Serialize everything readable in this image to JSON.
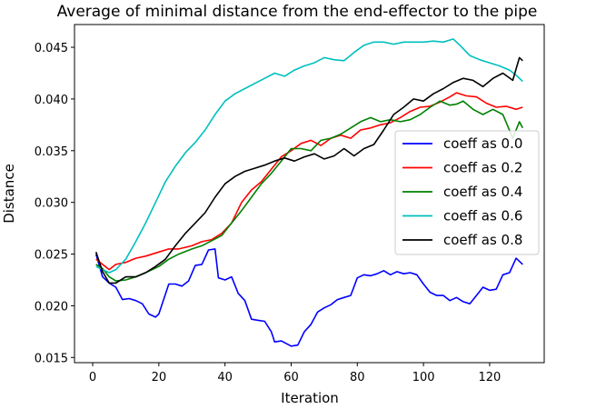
{
  "chart_data": {
    "type": "line",
    "title": "Average of minimal distance from the end-effector to the pipe",
    "xlabel": "Iteration",
    "ylabel": "Distance",
    "xlim": [
      -5.5,
      136.5
    ],
    "ylim": [
      0.0145,
      0.0472
    ],
    "xticks": [
      0,
      20,
      40,
      60,
      80,
      100,
      120
    ],
    "xtick_labels": [
      "0",
      "20",
      "40",
      "60",
      "80",
      "100",
      "120"
    ],
    "yticks": [
      0.015,
      0.02,
      0.025,
      0.03,
      0.035,
      0.04,
      0.045
    ],
    "ytick_labels": [
      "0.015",
      "0.020",
      "0.025",
      "0.030",
      "0.035",
      "0.040",
      "0.045"
    ],
    "grid": false,
    "legend_position": "center-right",
    "series": [
      {
        "name": "coeff as 0.0",
        "color": "#0000ff",
        "x": [
          1,
          3,
          5,
          7,
          9,
          11,
          13,
          15,
          17,
          19,
          20,
          23,
          25,
          27,
          29,
          31,
          33,
          35,
          37,
          38,
          40,
          42,
          44,
          46,
          48,
          50,
          52,
          54,
          55,
          57,
          60,
          62,
          64,
          66,
          68,
          70,
          72,
          74,
          76,
          78,
          80,
          82,
          84,
          86,
          88,
          90,
          92,
          94,
          96,
          98,
          100,
          102,
          104,
          106,
          108,
          110,
          112,
          114,
          116,
          118,
          120,
          122,
          124,
          126,
          128,
          130
        ],
        "y": [
          0.025,
          0.0228,
          0.0222,
          0.0218,
          0.0206,
          0.0207,
          0.0205,
          0.0202,
          0.0192,
          0.0189,
          0.0192,
          0.0221,
          0.0221,
          0.0219,
          0.0224,
          0.0239,
          0.024,
          0.0254,
          0.0255,
          0.0227,
          0.0225,
          0.0228,
          0.0212,
          0.0205,
          0.0187,
          0.0186,
          0.0185,
          0.0175,
          0.0165,
          0.0166,
          0.0161,
          0.0162,
          0.0175,
          0.0182,
          0.0194,
          0.0198,
          0.0201,
          0.0206,
          0.0208,
          0.021,
          0.0227,
          0.023,
          0.0229,
          0.0231,
          0.0234,
          0.023,
          0.0233,
          0.0231,
          0.0232,
          0.023,
          0.0221,
          0.0213,
          0.021,
          0.021,
          0.0205,
          0.0208,
          0.0204,
          0.0202,
          0.021,
          0.0218,
          0.0215,
          0.0216,
          0.023,
          0.0232,
          0.0246,
          0.024
        ]
      },
      {
        "name": "coeff as 0.2",
        "color": "#ff0000",
        "x": [
          1,
          3,
          5,
          7,
          10,
          13,
          16,
          20,
          23,
          26,
          30,
          33,
          36,
          39,
          42,
          45,
          48,
          51,
          54,
          57,
          60,
          63,
          66,
          69,
          72,
          75,
          78,
          81,
          84,
          87,
          90,
          93,
          96,
          99,
          102,
          105,
          108,
          110,
          113,
          116,
          119,
          122,
          125,
          128,
          130
        ],
        "y": [
          0.0245,
          0.024,
          0.0235,
          0.024,
          0.0242,
          0.0246,
          0.0248,
          0.0252,
          0.0255,
          0.0255,
          0.0258,
          0.0262,
          0.0264,
          0.027,
          0.028,
          0.03,
          0.0312,
          0.032,
          0.0332,
          0.0344,
          0.035,
          0.0357,
          0.036,
          0.0355,
          0.0362,
          0.0365,
          0.0362,
          0.037,
          0.0372,
          0.0375,
          0.0377,
          0.0382,
          0.0388,
          0.0392,
          0.0393,
          0.0397,
          0.0402,
          0.0406,
          0.0403,
          0.0402,
          0.0396,
          0.0392,
          0.0393,
          0.039,
          0.0392
        ]
      },
      {
        "name": "coeff as 0.4",
        "color": "#008000",
        "x": [
          1,
          3,
          5,
          7,
          10,
          13,
          16,
          20,
          23,
          26,
          30,
          33,
          36,
          39,
          42,
          45,
          48,
          51,
          54,
          57,
          60,
          63,
          66,
          69,
          72,
          75,
          78,
          81,
          84,
          87,
          90,
          93,
          96,
          99,
          102,
          105,
          108,
          110,
          112,
          115,
          118,
          121,
          124,
          127,
          129,
          130
        ],
        "y": [
          0.024,
          0.0236,
          0.0228,
          0.0224,
          0.0225,
          0.0228,
          0.0232,
          0.0238,
          0.0245,
          0.025,
          0.0255,
          0.0258,
          0.0263,
          0.0268,
          0.028,
          0.0292,
          0.0305,
          0.0318,
          0.0328,
          0.034,
          0.0352,
          0.0352,
          0.035,
          0.036,
          0.0362,
          0.0366,
          0.0372,
          0.0378,
          0.0382,
          0.0378,
          0.038,
          0.0378,
          0.038,
          0.0385,
          0.0392,
          0.0398,
          0.0394,
          0.0395,
          0.0398,
          0.039,
          0.0385,
          0.039,
          0.0385,
          0.0362,
          0.0378,
          0.0372
        ]
      },
      {
        "name": "coeff as 0.6",
        "color": "#00bfbf",
        "x": [
          1,
          3,
          5,
          7,
          10,
          13,
          16,
          19,
          22,
          25,
          28,
          31,
          34,
          37,
          40,
          43,
          46,
          49,
          52,
          55,
          58,
          61,
          64,
          67,
          70,
          73,
          76,
          79,
          82,
          85,
          88,
          91,
          94,
          97,
          100,
          103,
          106,
          109,
          111,
          114,
          117,
          120,
          123,
          126,
          128,
          130
        ],
        "y": [
          0.0238,
          0.0235,
          0.0232,
          0.0235,
          0.0245,
          0.0262,
          0.028,
          0.03,
          0.032,
          0.0335,
          0.0348,
          0.0358,
          0.037,
          0.0385,
          0.0398,
          0.0405,
          0.041,
          0.0415,
          0.042,
          0.0425,
          0.0422,
          0.0428,
          0.0432,
          0.0435,
          0.044,
          0.0438,
          0.0437,
          0.0445,
          0.0452,
          0.0455,
          0.0455,
          0.0453,
          0.0455,
          0.0455,
          0.0455,
          0.0456,
          0.0455,
          0.0458,
          0.0452,
          0.0442,
          0.0438,
          0.0435,
          0.0432,
          0.0428,
          0.0423,
          0.0417
        ]
      },
      {
        "name": "coeff as 0.8",
        "color": "#000000",
        "x": [
          1,
          3,
          5,
          7,
          10,
          13,
          16,
          19,
          22,
          25,
          28,
          31,
          34,
          37,
          40,
          43,
          46,
          49,
          52,
          55,
          58,
          61,
          64,
          67,
          70,
          73,
          76,
          79,
          82,
          85,
          88,
          91,
          94,
          97,
          100,
          103,
          106,
          109,
          112,
          115,
          118,
          121,
          124,
          127,
          129,
          130
        ],
        "y": [
          0.0252,
          0.0233,
          0.0222,
          0.0222,
          0.0228,
          0.0228,
          0.0232,
          0.0238,
          0.0245,
          0.0258,
          0.027,
          0.028,
          0.029,
          0.0305,
          0.0318,
          0.0325,
          0.033,
          0.0333,
          0.0336,
          0.034,
          0.0343,
          0.034,
          0.0344,
          0.0347,
          0.0342,
          0.0345,
          0.0352,
          0.0345,
          0.0352,
          0.0356,
          0.037,
          0.0385,
          0.0392,
          0.04,
          0.0398,
          0.0405,
          0.041,
          0.0416,
          0.042,
          0.0418,
          0.0412,
          0.042,
          0.0425,
          0.0418,
          0.044,
          0.0437
        ]
      }
    ]
  }
}
